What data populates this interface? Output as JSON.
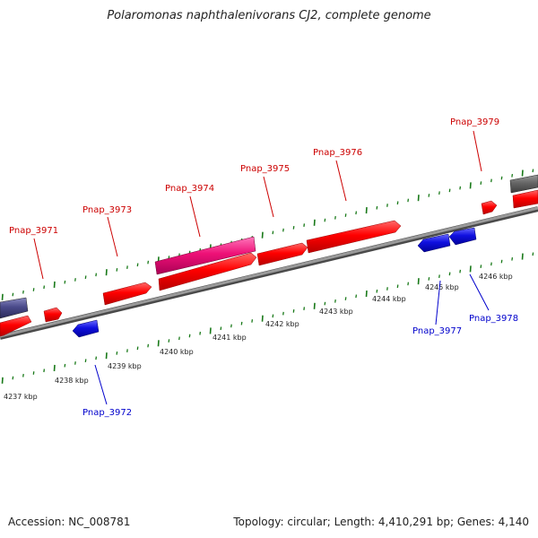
{
  "title": "Polaromonas naphthalenivorans CJ2, complete genome",
  "accession": "Accession: NC_008781",
  "topology_info": "Topology: circular; Length: 4,410,291 bp; Genes: 4,140",
  "colors": {
    "forward_gene": "#ff0000",
    "reverse_gene": "#1010e0",
    "highlight_gene": "#ee1177",
    "other_forward": "#4a4a8a",
    "other_gray": "#666666",
    "backbone": "#888888",
    "ticks": "#1a7a1a",
    "label_forward": "#cc0000",
    "label_reverse": "#0000cc"
  },
  "kbp_labels": [
    "4237 kbp",
    "4238 kbp",
    "4239 kbp",
    "4240 kbp",
    "4241 kbp",
    "4242 kbp",
    "4243 kbp",
    "4244 kbp",
    "4245 kbp",
    "4246 kbp"
  ],
  "gene_labels_top": [
    "Pnap_3971",
    "Pnap_3973",
    "Pnap_3974",
    "Pnap_3975",
    "Pnap_3976",
    "Pnap_3979"
  ],
  "gene_labels_bottom": [
    "Pnap_3972",
    "Pnap_3977",
    "Pnap_3978"
  ]
}
